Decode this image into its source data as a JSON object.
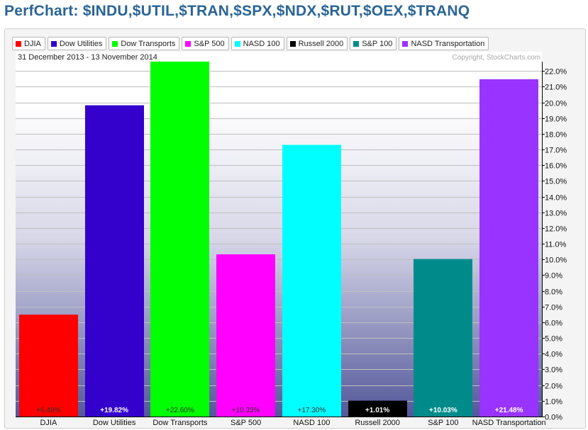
{
  "title": "PerfChart: $INDU,$UTIL,$TRAN,$SPX,$NDX,$RUT,$OEX,$TRANQ",
  "date_range": "31 December 2013 - 13 November 2014",
  "copyright": "Copyright, StockCharts.com",
  "legend": [
    {
      "label": "DJIA",
      "color": "#ff0000"
    },
    {
      "label": "Dow Utilities",
      "color": "#3300cc"
    },
    {
      "label": "Dow Transports",
      "color": "#00ff00"
    },
    {
      "label": "S&P 500",
      "color": "#ff00ff"
    },
    {
      "label": "NASD 100",
      "color": "#00ffff"
    },
    {
      "label": "Russell 2000",
      "color": "#000000"
    },
    {
      "label": "S&P 100",
      "color": "#008b8b"
    },
    {
      "label": "NASD Transportation",
      "color": "#9933ff"
    }
  ],
  "chart_data": {
    "type": "bar",
    "categories": [
      "DJIA",
      "Dow Utilities",
      "Dow Transports",
      "S&P 500",
      "NASD 100",
      "Russell 2000",
      "S&P 100",
      "NASD Transportation"
    ],
    "values": [
      6.49,
      19.82,
      22.6,
      10.33,
      17.3,
      1.01,
      10.03,
      21.48
    ],
    "data_labels": [
      "+6.49%",
      "+19.82%",
      "+22.60%",
      "+10.33%",
      "+17.30%",
      "+1.01%",
      "+10.03%",
      "+21.48%"
    ],
    "colors": [
      "#ff0000",
      "#3300cc",
      "#00ff00",
      "#ff00ff",
      "#00ffff",
      "#000000",
      "#008b8b",
      "#9933ff"
    ],
    "label_colors": [
      "#333333",
      "#ffffff",
      "#333333",
      "#333333",
      "#333333",
      "#ffffff",
      "#ffffff",
      "#ffffff"
    ],
    "ylim": [
      0,
      22.6
    ],
    "yticks": [
      0,
      1,
      2,
      3,
      4,
      5,
      6,
      7,
      8,
      9,
      10,
      11,
      12,
      13,
      14,
      15,
      16,
      17,
      18,
      19,
      20,
      21,
      22
    ],
    "ytick_labels": [
      "0.0%",
      "1.0%",
      "2.0%",
      "3.0%",
      "4.0%",
      "5.0%",
      "6.0%",
      "7.0%",
      "8.0%",
      "9.0%",
      "10.0%",
      "11.0%",
      "12.0%",
      "13.0%",
      "14.0%",
      "15.0%",
      "16.0%",
      "17.0%",
      "18.0%",
      "19.0%",
      "20.0%",
      "21.0%",
      "22.0%"
    ],
    "y_axis_position": "right",
    "grid": true
  }
}
